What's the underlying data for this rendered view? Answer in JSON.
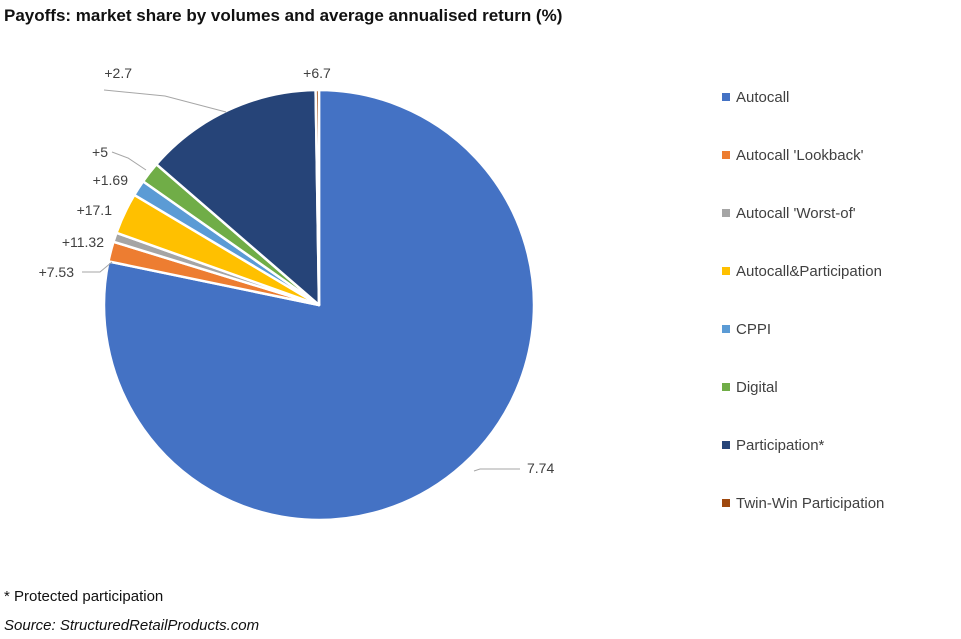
{
  "title": "Payoffs: market share by volumes and average annualised return (%)",
  "footnote": "* Protected participation",
  "source": "Source: StructuredRetailProducts.com",
  "chart_data": {
    "type": "pie",
    "title": "Payoffs: market share by volumes and average annualised return (%)",
    "legend_position": "right",
    "slices": [
      {
        "name": "Autocall",
        "share": 0.7825,
        "label": "7.74",
        "color": "#4472C4"
      },
      {
        "name": "Autocall 'Lookback'",
        "share": 0.015,
        "label": "+7.53",
        "color": "#ED7D31"
      },
      {
        "name": "Autocall 'Worst-of'",
        "share": 0.007,
        "label": "+11.32",
        "color": "#A5A5A5"
      },
      {
        "name": "Autocall&Participation",
        "share": 0.031,
        "label": "+17.1",
        "color": "#FFC000"
      },
      {
        "name": "CPPI",
        "share": 0.012,
        "label": "+1.69",
        "color": "#5B9BD5"
      },
      {
        "name": "Digital",
        "share": 0.016,
        "label": "+5",
        "color": "#70AD47"
      },
      {
        "name": "Participation*",
        "share": 0.134,
        "label": "+2.7",
        "color": "#264478"
      },
      {
        "name": "Twin-Win Participation",
        "share": 0.0025,
        "label": "+6.7",
        "color": "#9E480E"
      }
    ]
  }
}
